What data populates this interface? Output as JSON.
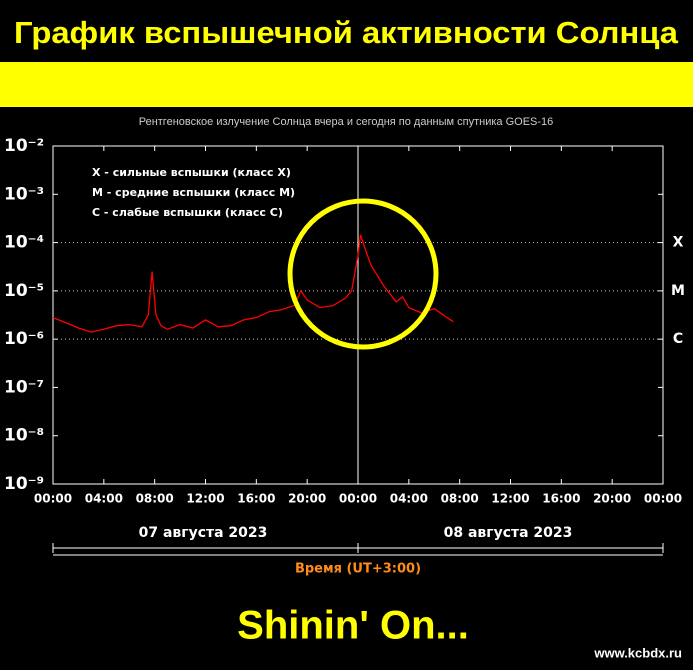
{
  "header": {
    "title": "График вспышечной активности Солнца"
  },
  "chart_data": {
    "type": "line",
    "subtitle": "Рентгеновское излучение Солнца вчера и сегодня по данным спутника GOES-16",
    "log_scale": true,
    "xlim": [
      0,
      48
    ],
    "xticks": [
      {
        "value": 0,
        "label": "00:00"
      },
      {
        "value": 4,
        "label": "04:00"
      },
      {
        "value": 8,
        "label": "08:00"
      },
      {
        "value": 12,
        "label": "12:00"
      },
      {
        "value": 16,
        "label": "16:00"
      },
      {
        "value": 20,
        "label": "20:00"
      },
      {
        "value": 24,
        "label": "00:00"
      },
      {
        "value": 28,
        "label": "04:00"
      },
      {
        "value": 32,
        "label": "08:00"
      },
      {
        "value": 36,
        "label": "12:00"
      },
      {
        "value": 40,
        "label": "16:00"
      },
      {
        "value": 44,
        "label": "20:00"
      },
      {
        "value": 48,
        "label": "00:00"
      }
    ],
    "ylim": [
      1e-09,
      0.01
    ],
    "yticks": [
      {
        "value": 0.01,
        "label": "10⁻²"
      },
      {
        "value": 0.001,
        "label": "10⁻³"
      },
      {
        "value": 0.0001,
        "label": "10⁻⁴"
      },
      {
        "value": 1e-05,
        "label": "10⁻⁵"
      },
      {
        "value": 1e-06,
        "label": "10⁻⁶"
      },
      {
        "value": 1e-07,
        "label": "10⁻⁷"
      },
      {
        "value": 1e-08,
        "label": "10⁻⁸"
      },
      {
        "value": 1e-09,
        "label": "10⁻⁹"
      }
    ],
    "class_levels": [
      {
        "value": 0.0001,
        "label": "X"
      },
      {
        "value": 1e-05,
        "label": "M"
      },
      {
        "value": 1e-06,
        "label": "C"
      }
    ],
    "legend_notes": [
      "X - сильные вспышки (класс X)",
      "M - средние вспышки (класс M)",
      "C - слабые вспышки (класс C)"
    ],
    "date_labels": [
      "07 августа 2023",
      "08 августа 2023"
    ],
    "xlabel": "Время (UT+3:00)",
    "x": [
      0,
      1,
      2,
      3,
      4,
      5,
      6,
      7,
      7.5,
      7.8,
      8.1,
      8.5,
      9,
      10,
      11,
      12,
      13,
      14,
      15,
      16,
      17,
      18,
      19,
      19.5,
      20,
      21,
      22,
      23,
      23.5,
      24,
      24.2,
      24.6,
      25,
      26,
      27,
      27.5,
      28,
      29,
      30,
      31,
      31.5
    ],
    "series": [
      {
        "name": "GOES-16",
        "color": "#ff0000",
        "values": [
          2.8e-06,
          2.2e-06,
          1.7e-06,
          1.4e-06,
          1.6e-06,
          1.9e-06,
          2e-06,
          1.8e-06,
          3.2e-06,
          2.5e-05,
          3.2e-06,
          1.9e-06,
          1.6e-06,
          2e-06,
          1.7e-06,
          2.5e-06,
          1.8e-06,
          1.9e-06,
          2.5e-06,
          2.8e-06,
          3.7e-06,
          4.1e-06,
          5e-06,
          1e-05,
          6.5e-06,
          4.5e-06,
          4.9e-06,
          7e-06,
          1e-05,
          5.5e-05,
          0.000145,
          7e-05,
          3.5e-05,
          1.3e-05,
          5.9e-06,
          7.5e-06,
          4.5e-06,
          3.5e-06,
          4.3e-06,
          2.8e-06,
          2.3e-06
        ]
      }
    ]
  },
  "footer": {
    "caption": "Shinin' On...",
    "site": "www.kcbdx.ru"
  }
}
